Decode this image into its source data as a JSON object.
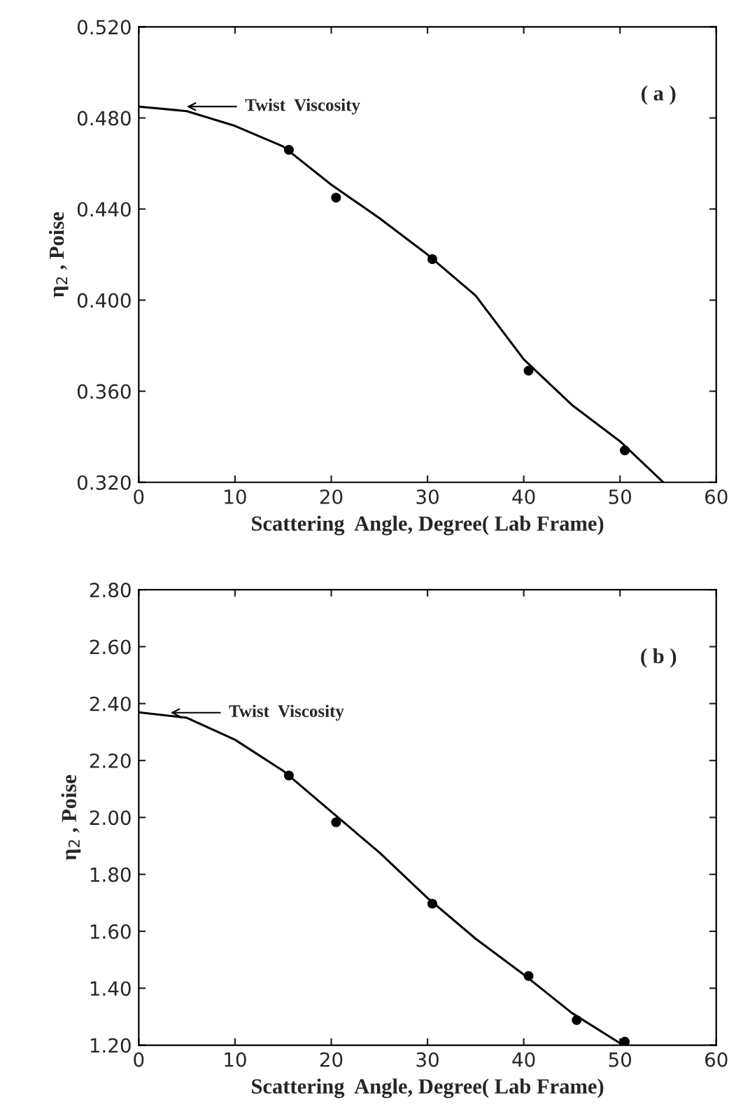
{
  "chart_data": [
    {
      "type": "scatter",
      "xlabel": "Scattering  Angle, Degree( Lab Frame)",
      "ylabel": "η$_{2}$ , Poise",
      "series": [
        {
          "type": "scatter",
          "color": "#000000",
          "marker": "circle",
          "x": [
            15.6,
            20.5,
            30.5,
            40.5,
            50.5
          ],
          "values": [
            0.466,
            0.445,
            0.418,
            0.369,
            0.334
          ]
        },
        {
          "type": "line",
          "color": "#000000",
          "line_style": "solid",
          "x": [
            0,
            5,
            10,
            15,
            20,
            25,
            30,
            35,
            40,
            45,
            50,
            54.5
          ],
          "values": [
            0.485,
            0.483,
            0.4765,
            0.4675,
            0.4507,
            0.436,
            0.42,
            0.402,
            0.374,
            0.354,
            0.338,
            0.32
          ]
        }
      ],
      "annotations": [
        "Twist  Viscosity",
        "( a )"
      ],
      "xlim": [
        0,
        60
      ],
      "xticks": [
        0,
        10,
        20,
        30,
        40,
        50,
        60
      ],
      "ylim": [
        0.32,
        0.52
      ],
      "yticks": [
        {
          "value": 0.32,
          "label": "0.320"
        },
        {
          "value": 0.36,
          "label": "0.360"
        },
        {
          "value": 0.4,
          "label": "0.400"
        },
        {
          "value": 0.44,
          "label": "0.440"
        },
        {
          "value": 0.48,
          "label": "0.480"
        },
        {
          "value": 0.52,
          "label": "0.520"
        }
      ],
      "grid": false,
      "legend": false
    },
    {
      "type": "scatter",
      "xlabel": "Scattering  Angle, Degree( Lab Frame)",
      "ylabel": "η$_{2}$ , Poise",
      "series": [
        {
          "type": "scatter",
          "color": "#000000",
          "marker": "circle",
          "x": [
            15.6,
            20.5,
            30.5,
            40.5,
            45.5,
            50.5
          ],
          "values": [
            2.147,
            1.983,
            1.697,
            1.443,
            1.288,
            1.212
          ]
        },
        {
          "type": "line",
          "color": "#000000",
          "line_style": "solid",
          "x": [
            0,
            5,
            10,
            15,
            20,
            25,
            30,
            35,
            40,
            45,
            50,
            50.6
          ],
          "values": [
            2.369,
            2.35,
            2.273,
            2.164,
            2.02,
            1.877,
            1.717,
            1.574,
            1.448,
            1.313,
            1.207,
            1.2
          ]
        }
      ],
      "annotations": [
        "Twist  Viscosity",
        "( b )"
      ],
      "xlim": [
        0,
        60
      ],
      "xticks": [
        0,
        10,
        20,
        30,
        40,
        50,
        60
      ],
      "ylim": [
        1.2,
        2.8
      ],
      "yticks": [
        {
          "value": 1.2,
          "label": "1.20"
        },
        {
          "value": 1.4,
          "label": "1.40"
        },
        {
          "value": 1.6,
          "label": "1.60"
        },
        {
          "value": 1.8,
          "label": "1.80"
        },
        {
          "value": 2.0,
          "label": "2.00"
        },
        {
          "value": 2.2,
          "label": "2.20"
        },
        {
          "value": 2.4,
          "label": "2.40"
        },
        {
          "value": 2.6,
          "label": "2.60"
        },
        {
          "value": 2.8,
          "label": "2.80"
        }
      ],
      "grid": false,
      "legend": false
    }
  ]
}
